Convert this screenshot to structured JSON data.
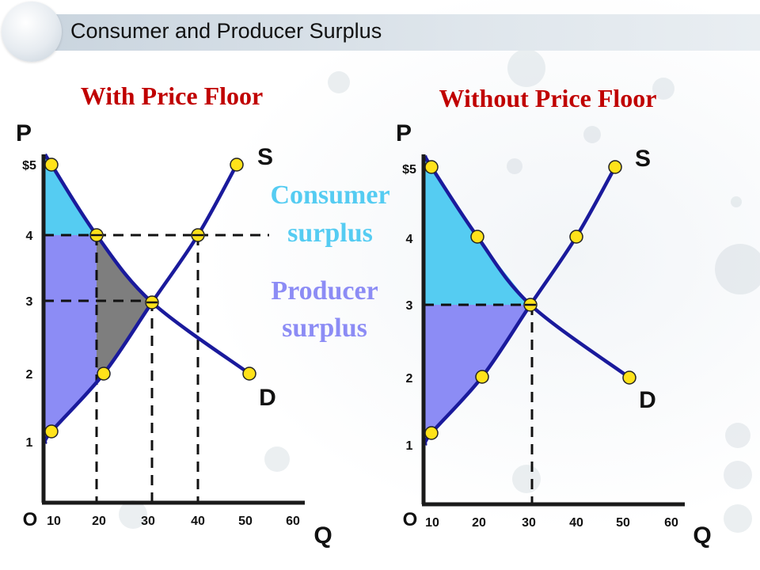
{
  "page_title": "Consumer and Producer Surplus",
  "colors": {
    "consumer_surplus": "#55ccf2",
    "producer_surplus": "#8c8cf5",
    "deadweight_loss": "#7e7e7e",
    "curve": "#1a1a9c",
    "point_fill": "#ffe21a",
    "price_floor_heading": "#c00000",
    "consumer_label": "#55ccf2",
    "producer_label": "#8c8cf5"
  },
  "legend": {
    "consumer": [
      "Consumer",
      "surplus"
    ],
    "producer": [
      "Producer",
      "surplus"
    ]
  },
  "chart_data": [
    {
      "type": "line",
      "heading": "With Price Floor",
      "ylabel": "P",
      "xlabel": "Q",
      "origin_label": "O",
      "ytick_labels": [
        "$5",
        "4",
        "3",
        "2",
        "1"
      ],
      "yticks": [
        5,
        4,
        3,
        2,
        1
      ],
      "xticks": [
        10,
        20,
        30,
        40,
        50,
        60
      ],
      "xlim": [
        0,
        60
      ],
      "ylim": [
        0,
        5.4
      ],
      "supply_label": "S",
      "demand_label": "D",
      "supply": [
        [
          10,
          1
        ],
        [
          20,
          2
        ],
        [
          30,
          3
        ],
        [
          40,
          4
        ],
        [
          50,
          5
        ]
      ],
      "demand": [
        [
          10,
          5
        ],
        [
          20,
          4
        ],
        [
          30,
          3
        ],
        [
          50,
          2
        ]
      ],
      "supply_points": [
        [
          10,
          1
        ],
        [
          20,
          2
        ],
        [
          30,
          3
        ],
        [
          40,
          4
        ],
        [
          50,
          5
        ]
      ],
      "demand_points": [
        [
          10,
          5
        ],
        [
          20,
          4
        ],
        [
          30,
          3
        ],
        [
          50,
          2
        ]
      ],
      "price_floor": 4,
      "equilibrium": [
        30,
        3
      ],
      "consumer_surplus": true,
      "producer_surplus": true,
      "deadweight_loss": true,
      "dashed_lines": [
        {
          "from": [
            0,
            4
          ],
          "to": [
            40,
            4
          ]
        },
        {
          "from": [
            40,
            4
          ],
          "to": [
            55,
            4
          ]
        },
        {
          "from": [
            0,
            3
          ],
          "to": [
            30,
            3
          ]
        },
        {
          "from": [
            20,
            4
          ],
          "to": [
            20,
            0
          ]
        },
        {
          "from": [
            30,
            3
          ],
          "to": [
            30,
            0
          ]
        },
        {
          "from": [
            40,
            4
          ],
          "to": [
            40,
            0
          ]
        }
      ]
    },
    {
      "type": "line",
      "heading": "Without Price Floor",
      "ylabel": "P",
      "xlabel": "Q",
      "origin_label": "O",
      "ytick_labels": [
        "$5",
        "4",
        "3",
        "2",
        "1"
      ],
      "yticks": [
        5,
        4,
        3,
        2,
        1
      ],
      "xticks": [
        10,
        20,
        30,
        40,
        50,
        60
      ],
      "xlim": [
        0,
        60
      ],
      "ylim": [
        0,
        5.4
      ],
      "supply_label": "S",
      "demand_label": "D",
      "supply": [
        [
          10,
          1
        ],
        [
          20,
          2
        ],
        [
          30,
          3
        ],
        [
          40,
          4
        ],
        [
          50,
          5
        ]
      ],
      "demand": [
        [
          10,
          5
        ],
        [
          20,
          4
        ],
        [
          30,
          3
        ],
        [
          50,
          2
        ]
      ],
      "supply_points": [
        [
          10,
          1
        ],
        [
          20,
          2
        ],
        [
          40,
          4
        ],
        [
          50,
          5
        ]
      ],
      "demand_points": [
        [
          10,
          5
        ],
        [
          20,
          4
        ],
        [
          30,
          3
        ],
        [
          50,
          2
        ]
      ],
      "price_floor": null,
      "equilibrium": [
        30,
        3
      ],
      "consumer_surplus": true,
      "producer_surplus": true,
      "deadweight_loss": false,
      "dashed_lines": [
        {
          "from": [
            0,
            3
          ],
          "to": [
            30,
            3
          ]
        },
        {
          "from": [
            30,
            3
          ],
          "to": [
            30,
            0
          ]
        }
      ]
    }
  ]
}
